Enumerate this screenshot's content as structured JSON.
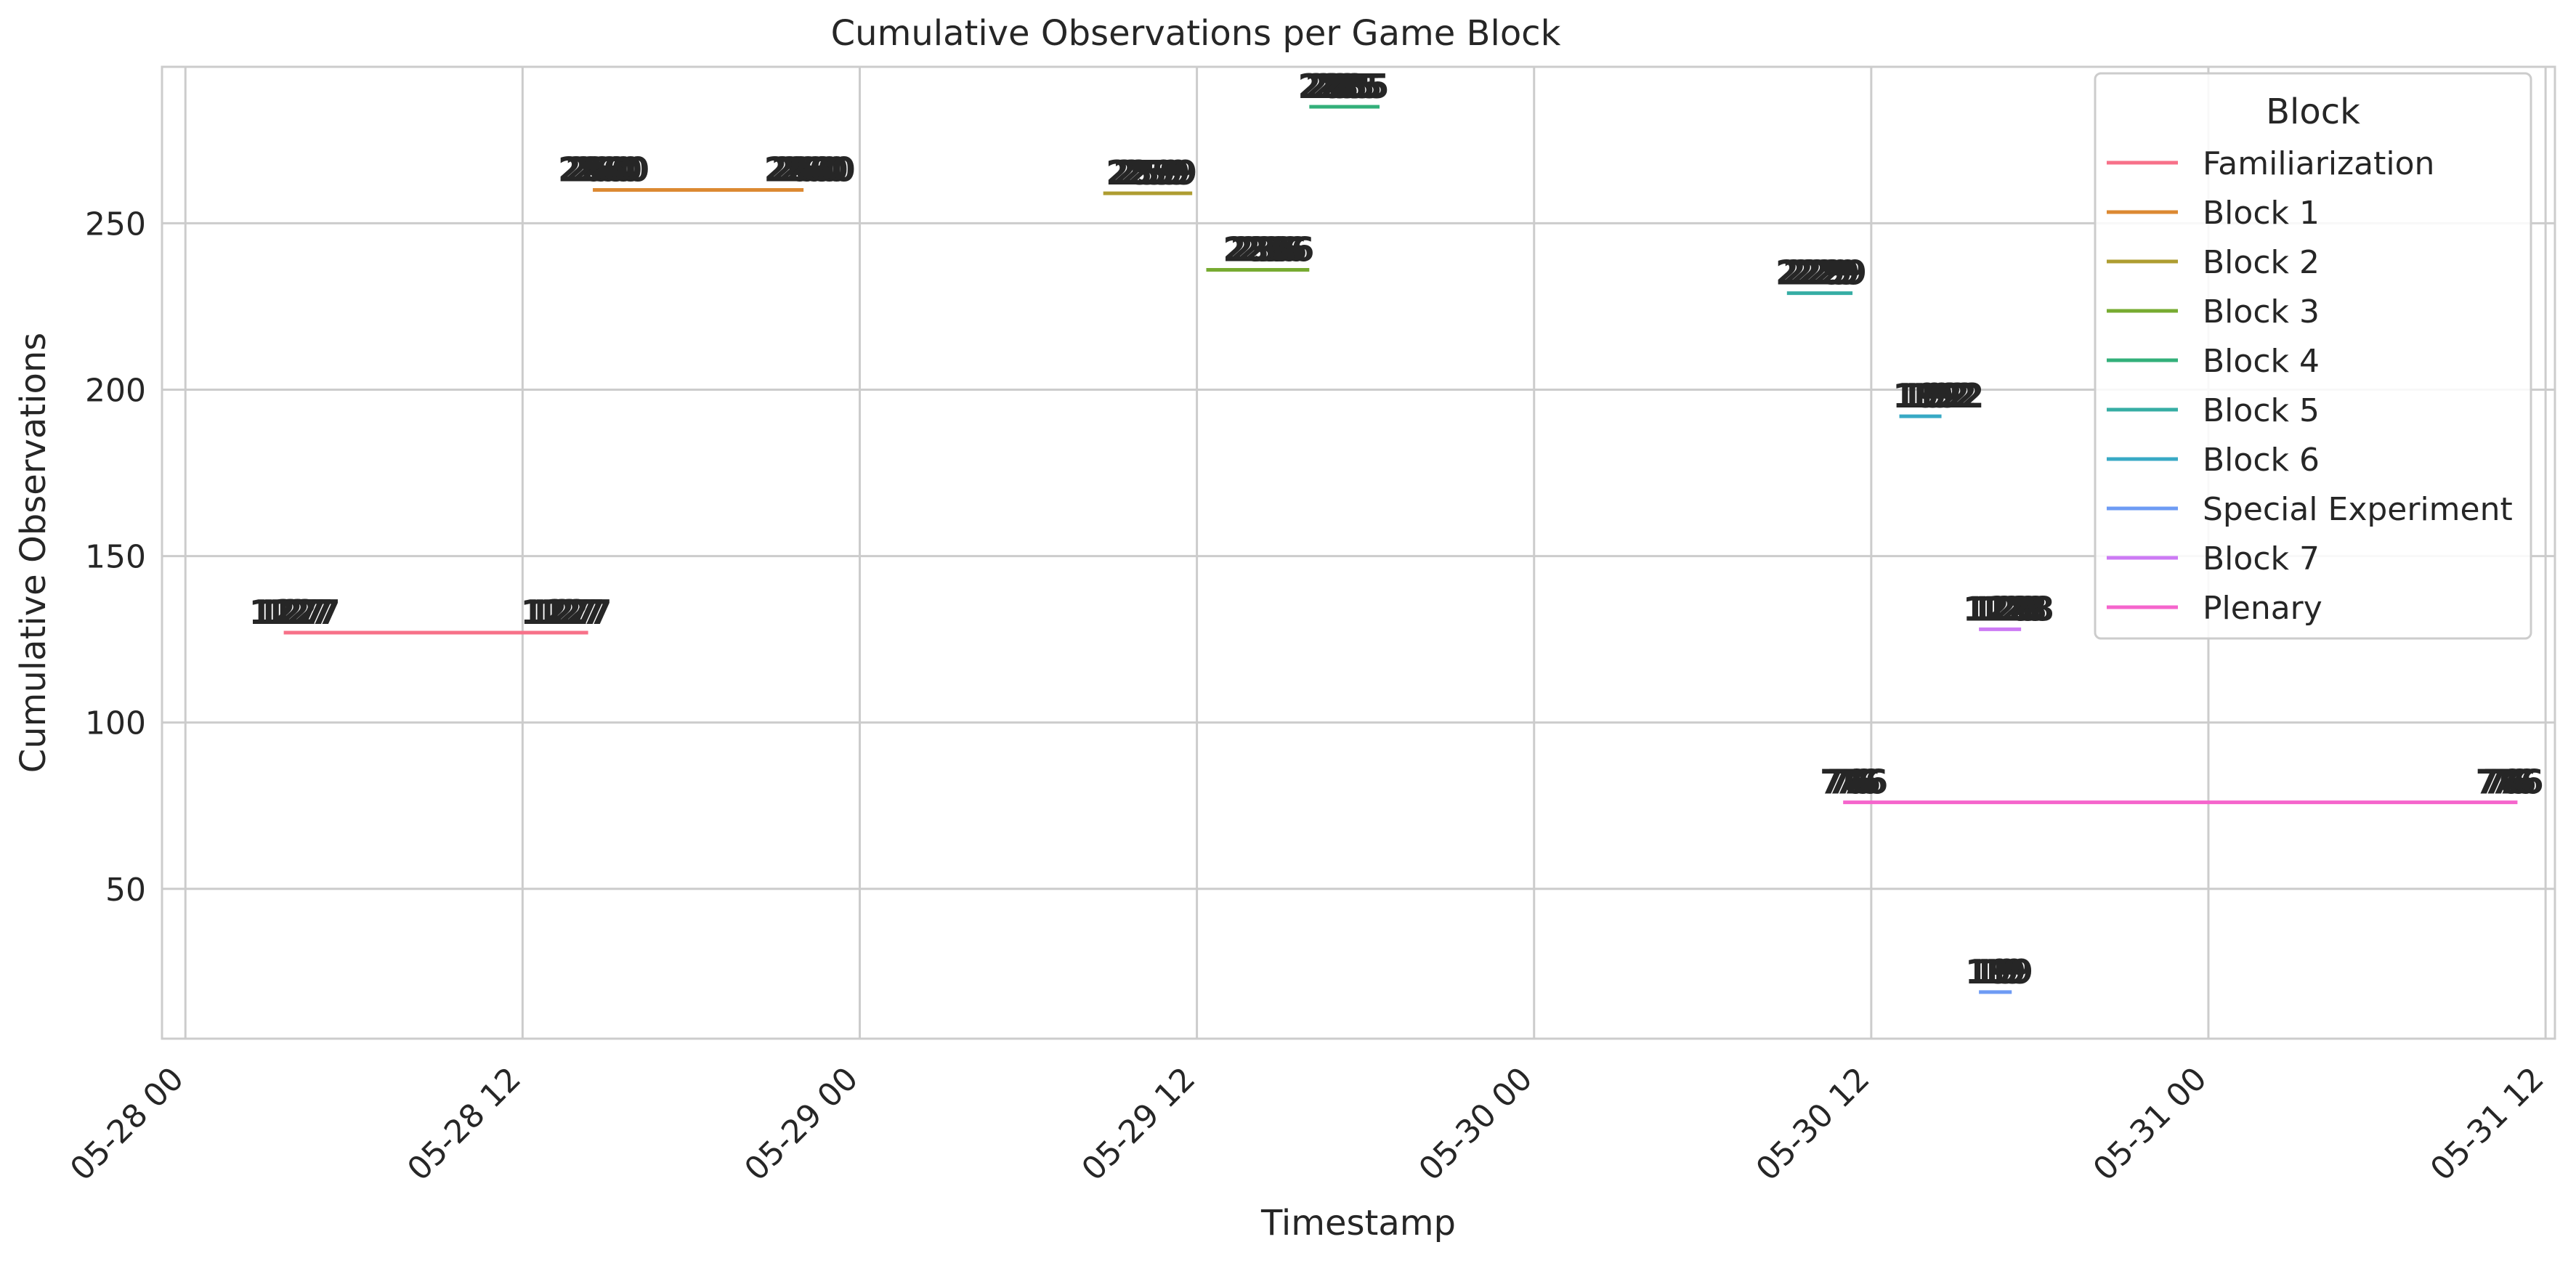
{
  "chart_data": {
    "type": "line",
    "title": "Cumulative Observations per Game Block",
    "xlabel": "Timestamp",
    "ylabel": "Cumulative Observations",
    "xlim": [
      "2024-05-27T23:10",
      "2024-05-31T12:20"
    ],
    "ylim": [
      5,
      297
    ],
    "x_ticks": [
      {
        "t": "2024-05-28T00:00",
        "label": "05-28 00"
      },
      {
        "t": "2024-05-28T12:00",
        "label": "05-28 12"
      },
      {
        "t": "2024-05-29T00:00",
        "label": "05-29 00"
      },
      {
        "t": "2024-05-29T12:00",
        "label": "05-29 12"
      },
      {
        "t": "2024-05-30T00:00",
        "label": "05-30 00"
      },
      {
        "t": "2024-05-30T12:00",
        "label": "05-30 12"
      },
      {
        "t": "2024-05-31T00:00",
        "label": "05-31 00"
      },
      {
        "t": "2024-05-31T12:00",
        "label": "05-31 12"
      }
    ],
    "y_ticks": [
      50,
      100,
      150,
      200,
      250
    ],
    "grid": true,
    "legend": {
      "title": "Block",
      "position": "top-right"
    },
    "series": [
      {
        "name": "Familiarization",
        "color": "#f77189",
        "value": 127,
        "start": "2024-05-28T03:30",
        "end": "2024-05-28T14:20",
        "labels": [
          {
            "t": "2024-05-28T03:30",
            "text": "127"
          },
          {
            "t": "2024-05-28T13:10",
            "text": "127"
          }
        ]
      },
      {
        "name": "Block 1",
        "color": "#dc8932",
        "value": 260,
        "start": "2024-05-28T14:30",
        "end": "2024-05-28T22:00",
        "labels": [
          {
            "t": "2024-05-28T14:30",
            "text": "260"
          },
          {
            "t": "2024-05-28T21:50",
            "text": "260"
          }
        ]
      },
      {
        "name": "Block 2",
        "color": "#ae9d31",
        "value": 259,
        "start": "2024-05-29T08:40",
        "end": "2024-05-29T11:50",
        "labels": [
          {
            "t": "2024-05-29T10:00",
            "text": "259"
          }
        ]
      },
      {
        "name": "Block 3",
        "color": "#77ab31",
        "value": 236,
        "start": "2024-05-29T12:20",
        "end": "2024-05-29T16:00",
        "labels": [
          {
            "t": "2024-05-29T14:10",
            "text": "236"
          }
        ]
      },
      {
        "name": "Block 4",
        "color": "#33b07a",
        "value": 285,
        "start": "2024-05-29T16:00",
        "end": "2024-05-29T18:30",
        "labels": [
          {
            "t": "2024-05-29T16:50",
            "text": "285"
          }
        ]
      },
      {
        "name": "Block 5",
        "color": "#36ada4",
        "value": 229,
        "start": "2024-05-30T09:00",
        "end": "2024-05-30T11:20",
        "labels": [
          {
            "t": "2024-05-30T09:50",
            "text": "229"
          }
        ]
      },
      {
        "name": "Block 6",
        "color": "#38a9c5",
        "value": 192,
        "start": "2024-05-30T13:00",
        "end": "2024-05-30T14:30",
        "labels": [
          {
            "t": "2024-05-30T14:00",
            "text": "192"
          }
        ]
      },
      {
        "name": "Special Experiment",
        "color": "#6e9bf4",
        "value": 19,
        "start": "2024-05-30T15:50",
        "end": "2024-05-30T17:00",
        "labels": [
          {
            "t": "2024-05-30T16:10",
            "text": "19"
          }
        ]
      },
      {
        "name": "Block 7",
        "color": "#cc7af4",
        "value": 128,
        "start": "2024-05-30T15:50",
        "end": "2024-05-30T17:20",
        "labels": [
          {
            "t": "2024-05-30T16:30",
            "text": "128"
          }
        ]
      },
      {
        "name": "Plenary",
        "color": "#f565cc",
        "value": 76,
        "start": "2024-05-30T11:00",
        "end": "2024-05-31T11:00",
        "labels": [
          {
            "t": "2024-05-30T11:00",
            "text": "76"
          },
          {
            "t": "2024-05-31T10:20",
            "text": "76"
          }
        ]
      }
    ]
  }
}
